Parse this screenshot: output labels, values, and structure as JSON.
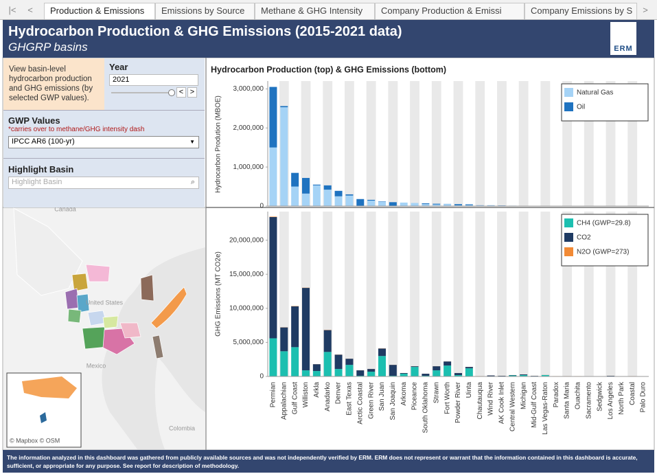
{
  "tabs": [
    "Production & Emissions",
    "Emissions by Source",
    "Methane & GHG Intensity",
    "Company Production & Emissi",
    "Company Emissions by S"
  ],
  "header": {
    "title": "Hydrocarbon Production & GHG Emissions (2015-2021 data)",
    "subtitle": "GHGRP basins",
    "logo": "ERM"
  },
  "controls": {
    "description": "View basin-level hydrocarbon production and GHG emissions (by selected GWP values).",
    "year": {
      "label": "Year",
      "value": "2021"
    },
    "gwp": {
      "label": "GWP Values",
      "note": "*carries over to methane/GHG intensity dash",
      "value": "IPCC AR6 (100-yr)"
    },
    "highlight": {
      "label": "Highlight Basin",
      "placeholder": "Highlight Basin"
    }
  },
  "map": {
    "labels": [
      "Canada",
      "United States",
      "Mexico",
      "Colombia"
    ],
    "attribution": "© Mapbox  © OSM"
  },
  "chart_data": [
    {
      "type": "stacked_bar",
      "title": "Hydrocarbon Production (top) & GHG Emissions (bottom)",
      "y_label": "Hydrocarbon Prodution (MBOE)",
      "ylim": [
        0,
        3200000
      ],
      "yticks": [
        0,
        {
          "value": 1000000,
          "label": "1,000,000"
        },
        {
          "value": 2000000,
          "label": "2,000,000"
        },
        {
          "value": 3000000,
          "label": "3,000,000"
        }
      ],
      "grid": false,
      "legend": "upper right",
      "series": [
        {
          "name": "Natural Gas",
          "color": "#a5d3f6",
          "values": [
            1500000,
            2530000,
            500000,
            320000,
            530000,
            420000,
            250000,
            270000,
            10000,
            140000,
            110000,
            10000,
            90000,
            80000,
            50000,
            40000,
            50000,
            20000,
            25000,
            15000,
            15000,
            10000,
            8000,
            6000,
            3000,
            2000,
            1000,
            1000,
            1000,
            1000,
            0,
            1000,
            0,
            500,
            0
          ]
        },
        {
          "name": "Oil",
          "color": "#1f73c0",
          "values": [
            1550000,
            30000,
            350000,
            400000,
            20000,
            110000,
            140000,
            30000,
            170000,
            20000,
            10000,
            90000,
            0,
            0,
            20000,
            20000,
            5000,
            30000,
            20000,
            5000,
            5000,
            5000,
            2000,
            2000,
            2000,
            0,
            2000,
            2000,
            0,
            0,
            0,
            2000,
            0,
            500,
            0
          ]
        }
      ]
    },
    {
      "type": "stacked_bar",
      "y_label": "GHG Emissions (MT CO2e)",
      "categories": [
        "Permian",
        "Appalachian",
        "Gulf Coast",
        "Williston",
        "Arkla",
        "Anadarko",
        "Denver",
        "East Texas",
        "Arctic Coastal",
        "Green River",
        "San Juan",
        "San Joaquin",
        "Arkoma",
        "Piceance",
        "South Oklahoma",
        "Strawn",
        "Fort Worth",
        "Powder River",
        "Uinta",
        "Chautauqua",
        "Wind River",
        "AK Cook Inlet",
        "Central Western",
        "Michigan",
        "Mid-Gulf Coast",
        "Las Vegas-Raton",
        "Paradox",
        "Santa Maria",
        "Ouachita",
        "Sacramento",
        "Sedgwick",
        "Los Angeles",
        "North Park",
        "Coastal",
        "Palo Duro"
      ],
      "ylim": [
        0,
        24200000
      ],
      "yticks": [
        0,
        {
          "value": 5000000,
          "label": "5,000,000"
        },
        {
          "value": 10000000,
          "label": "10,000,000"
        },
        {
          "value": 15000000,
          "label": "15,000,000"
        },
        {
          "value": 20000000,
          "label": "20,000,000"
        }
      ],
      "grid": false,
      "legend": "upper right",
      "series": [
        {
          "name": "CH4 (GWP=29.8)",
          "color": "#1cbfb0",
          "values": [
            5600000,
            3700000,
            4300000,
            900000,
            800000,
            3600000,
            1100000,
            1700000,
            100000,
            700000,
            3000000,
            100000,
            400000,
            1400000,
            100000,
            900000,
            1600000,
            200000,
            1200000,
            30000,
            50000,
            50000,
            150000,
            200000,
            60000,
            200000,
            30000,
            30000,
            30000,
            20000,
            10000,
            50000,
            10000,
            30000,
            10000
          ]
        },
        {
          "name": "CO2",
          "color": "#1f3b63",
          "values": [
            17800000,
            3500000,
            6000000,
            12100000,
            1000000,
            3200000,
            2100000,
            900000,
            800000,
            400000,
            1100000,
            1600000,
            100000,
            100000,
            300000,
            600000,
            600000,
            300000,
            200000,
            20000,
            100000,
            50000,
            50000,
            100000,
            40000,
            10000,
            20000,
            20000,
            20000,
            10000,
            10000,
            50000,
            10000,
            20000,
            10000
          ]
        },
        {
          "name": "N2O (GWP=273)",
          "color": "#f28a35",
          "values": [
            60000,
            20000,
            40000,
            30000,
            10000,
            30000,
            20000,
            10000,
            10000,
            10000,
            20000,
            10000,
            5000,
            10000,
            5000,
            10000,
            10000,
            5000,
            10000,
            5000,
            5000,
            5000,
            5000,
            5000,
            5000,
            5000,
            5000,
            5000,
            5000,
            5000,
            5000,
            5000,
            5000,
            5000,
            5000
          ]
        }
      ]
    }
  ],
  "footer": "The information analyzed in this dashboard was gathered from publicly available sources and was not independently verified by ERM.  ERM does not represent or warrant that the information contained in this dashboard is accurate, sufficient, or appropriate for any purpose.  See report for description of methodology."
}
